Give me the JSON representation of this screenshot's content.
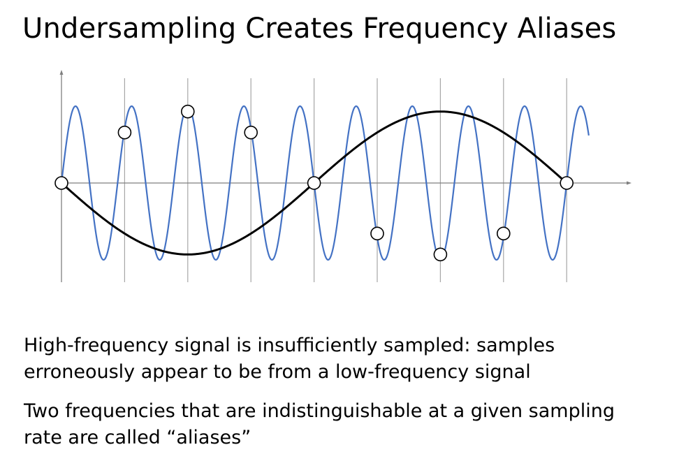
{
  "title": "Undersampling Creates Frequency Aliases",
  "figure": {
    "sample_times": [
      0,
      1,
      2,
      3,
      4,
      5,
      6,
      7,
      8
    ],
    "high_freq_cycles_per_sample": 1.125,
    "low_freq_cycles_per_sample": 0.125,
    "signal_duration_samples": 8.35,
    "colors": {
      "high_frequency_signal": "#4472c4",
      "low_frequency_alias": "#000000",
      "sample_lines": "#a6a6a6",
      "axes": "#7f7f7f",
      "sample_marker_fill": "#ffffff",
      "sample_marker_stroke": "#000000"
    }
  },
  "paragraphs": [
    {
      "lines": [
        "High-frequency signal is insufficiently sampled: samples",
        "erroneously appear to be from a low-frequency signal"
      ]
    },
    {
      "lines": [
        "Two frequencies that are indistinguishable at a given sampling",
        "rate are called “aliases”"
      ]
    }
  ]
}
